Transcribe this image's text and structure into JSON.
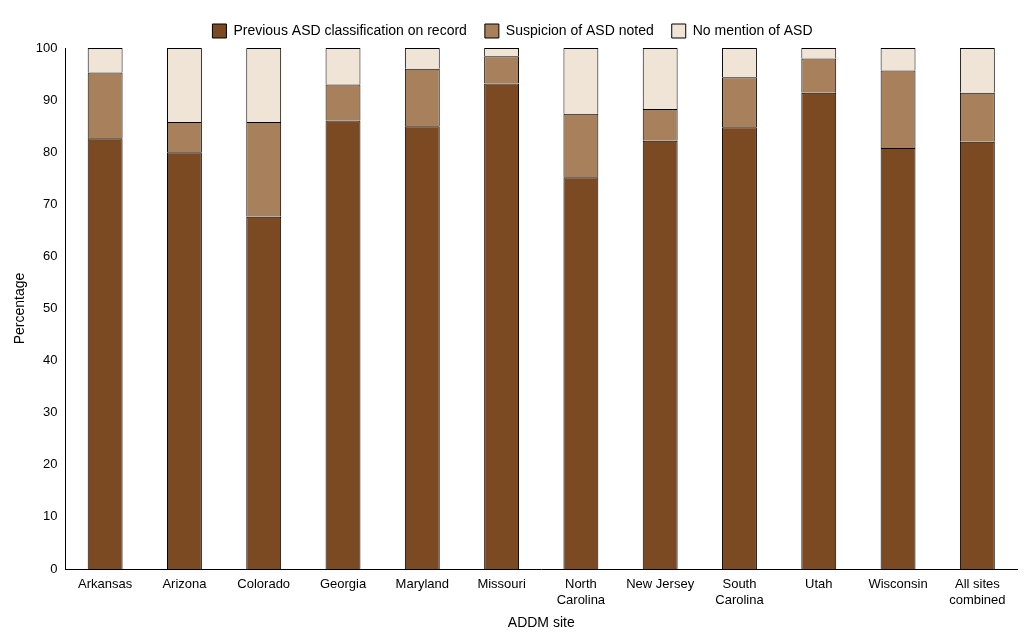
{
  "chart_data": {
    "type": "bar",
    "stacked": true,
    "x_label": "ADDM site",
    "y_label": "Percentage",
    "categories": [
      "Arkansas",
      "Arizona",
      "Colorado",
      "Georgia",
      "Maryland",
      "Missouri",
      "North Carolina",
      "New Jersey",
      "South Carolina",
      "Utah",
      "Wisconsin",
      "All sites combined"
    ],
    "series": [
      {
        "name": "Previous ASD classification on record",
        "color": "#7b4a22",
        "values": [
          82.7,
          80.0,
          67.6,
          86.1,
          85.0,
          93.2,
          75.2,
          82.2,
          84.8,
          91.4,
          80.8,
          82.0
        ]
      },
      {
        "name": "Suspicion of ASD noted",
        "color": "#a9805c",
        "values": [
          12.6,
          5.8,
          18.2,
          6.9,
          11.0,
          5.2,
          12.2,
          6.1,
          9.6,
          6.6,
          14.9,
          9.4
        ]
      },
      {
        "name": "No mention of ASD",
        "color": "#f0e4d7",
        "values": [
          4.7,
          14.2,
          14.2,
          7.0,
          4.0,
          1.6,
          12.6,
          11.7,
          5.6,
          2.0,
          4.3,
          8.6
        ]
      }
    ],
    "ylim": [
      0,
      100
    ],
    "yticks": [
      0,
      10,
      20,
      30,
      40,
      50,
      60,
      70,
      80,
      90,
      100
    ],
    "grid": false,
    "legend": "top"
  }
}
